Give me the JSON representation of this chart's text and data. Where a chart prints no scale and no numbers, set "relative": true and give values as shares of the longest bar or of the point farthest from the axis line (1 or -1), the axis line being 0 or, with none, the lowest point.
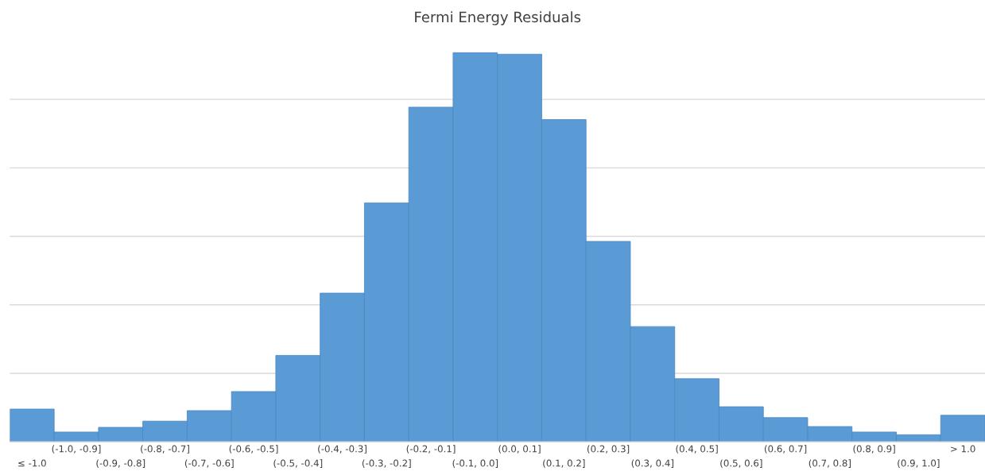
{
  "chart_data": {
    "type": "bar",
    "title": "Fermi Energy Residuals",
    "relative": true,
    "grid": "y",
    "color": "#5b9bd5",
    "categories": [
      "≤ -1.0",
      "(-1.0, -0.9]",
      "(-0.9, -0.8]",
      "(-0.8, -0.7]",
      "(-0.7, -0.6]",
      "(-0.6, -0.5]",
      "(-0.5, -0.4]",
      "(-0.4, -0.3]",
      "(-0.3, -0.2]",
      "(-0.2, -0.1]",
      "(-0.1, 0.0]",
      "(0.0, 0.1]",
      "(0.1, 0.2]",
      "(0.2, 0.3]",
      "(0.3, 0.4]",
      "(0.4, 0.5]",
      "(0.5, 0.6]",
      "(0.6, 0.7]",
      "(0.7, 0.8]",
      "(0.8, 0.9]",
      "(0.9, 1.0]",
      "> 1.0"
    ],
    "values": [
      0.084,
      0.025,
      0.037,
      0.053,
      0.08,
      0.129,
      0.222,
      0.382,
      0.614,
      0.86,
      1.0,
      0.996,
      0.828,
      0.515,
      0.296,
      0.162,
      0.09,
      0.062,
      0.039,
      0.025,
      0.018,
      0.068
    ]
  }
}
